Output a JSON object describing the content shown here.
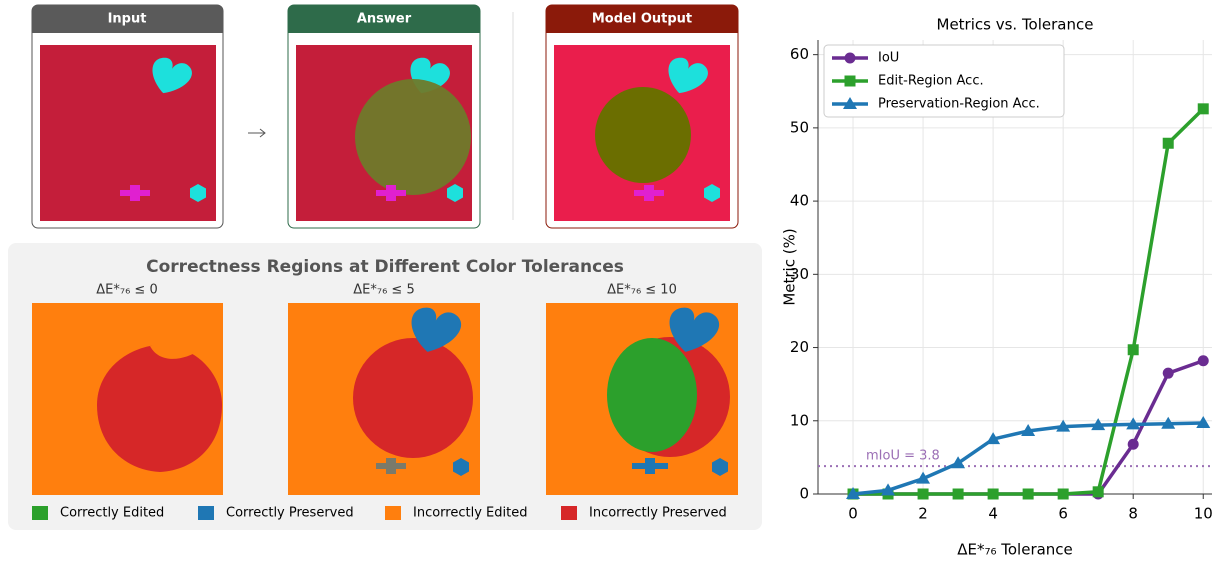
{
  "panels": {
    "input": "Input",
    "answer": "Answer",
    "output": "Model Output"
  },
  "regions": {
    "title": "Correctness Regions at Different Color Tolerances",
    "tolerances": [
      "ΔE*₇₆ ≤ 0",
      "ΔE*₇₆ ≤ 5",
      "ΔE*₇₆ ≤ 10"
    ],
    "legend": [
      "Correctly Edited",
      "Correctly Preserved",
      "Incorrectly Edited",
      "Incorrectly Preserved"
    ]
  },
  "chart_data": {
    "type": "line",
    "title": "Metrics vs. Tolerance",
    "x_label": "ΔE*₇₆ Tolerance",
    "y_label": "Metric (%)",
    "x": [
      0,
      1,
      2,
      3,
      4,
      5,
      6,
      7,
      8,
      9,
      10
    ],
    "series": [
      {
        "name": "IoU",
        "color": "#6a2c91",
        "marker": "circle",
        "values": [
          0,
          0,
          0,
          0,
          0,
          0,
          0,
          0,
          6.8,
          16.5,
          18.2
        ]
      },
      {
        "name": "Edit-Region Acc.",
        "color": "#2ca02c",
        "marker": "square",
        "values": [
          0,
          0,
          0,
          0,
          0,
          0,
          0,
          0.3,
          19.7,
          47.9,
          52.6
        ]
      },
      {
        "name": "Preservation-Region Acc.",
        "color": "#1f77b4",
        "marker": "triangle",
        "values": [
          0,
          0.5,
          2.1,
          4.2,
          7.5,
          8.6,
          9.2,
          9.4,
          9.5,
          9.6,
          9.7
        ]
      }
    ],
    "hline": {
      "value": 3.8,
      "label": "mIoU = 3.8",
      "color": "#9b6fb5"
    },
    "xlim": [
      -1,
      10.25
    ],
    "ylim": [
      0,
      62
    ],
    "xticks": [
      0,
      2,
      4,
      6,
      8,
      10
    ],
    "yticks": [
      0,
      10,
      20,
      30,
      40,
      50,
      60
    ],
    "grid": true,
    "legend": "upper left"
  }
}
